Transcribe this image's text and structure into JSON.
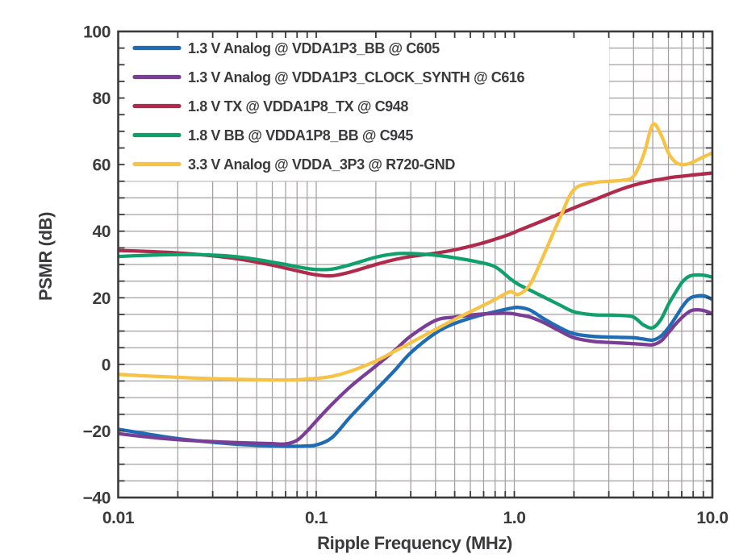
{
  "chart_data": {
    "type": "line",
    "title": "",
    "xlabel": "Ripple Frequency (MHz)",
    "ylabel": "PSMR (dB)",
    "x_scale": "log",
    "xlim": [
      0.01,
      10
    ],
    "ylim": [
      -40,
      100
    ],
    "grid": "on",
    "grid_minor_x_log": true,
    "grid_y_step_dB": 5,
    "legend_position": "top-left",
    "x_ticks": [
      {
        "value": 0.01,
        "label": "0.01"
      },
      {
        "value": 0.1,
        "label": "0.1"
      },
      {
        "value": 1.0,
        "label": "1.0"
      },
      {
        "value": 10.0,
        "label": "10.0"
      }
    ],
    "y_ticks": [
      {
        "value": 100,
        "label": "100"
      },
      {
        "value": 80,
        "label": "80"
      },
      {
        "value": 60,
        "label": "60"
      },
      {
        "value": 40,
        "label": "40"
      },
      {
        "value": 20,
        "label": "20"
      },
      {
        "value": 0,
        "label": "0"
      },
      {
        "value": -20,
        "label": "−20"
      },
      {
        "value": -40,
        "label": "−40"
      }
    ],
    "colors": {
      "text": "#3B3B3D",
      "border": "#3B3B3D",
      "grid": "#A5A0A2",
      "legend_background": "#FFFFFF",
      "plot_background": "#FFFFFF"
    },
    "line_width": 4.3,
    "x": [
      0.01,
      0.013,
      0.017,
      0.022,
      0.03,
      0.04,
      0.05,
      0.06,
      0.07,
      0.08,
      0.09,
      0.1,
      0.12,
      0.15,
      0.2,
      0.25,
      0.3,
      0.4,
      0.5,
      0.65,
      0.8,
      0.95,
      1.05,
      1.2,
      1.4,
      1.7,
      2.0,
      2.5,
      3.0,
      3.5,
      4.0,
      4.5,
      5.0,
      5.5,
      6.0,
      6.5,
      7.0,
      7.5,
      8.0,
      9.0,
      10.0
    ],
    "series": [
      {
        "name": "1.3 V Analog @ VDDA1P3_BB @ C605",
        "color": "#1E6CB3",
        "values": [
          -19.5,
          -20.6,
          -21.7,
          -22.6,
          -23.4,
          -24.0,
          -24.3,
          -24.5,
          -24.6,
          -24.6,
          -24.5,
          -24.2,
          -22.0,
          -15.5,
          -7.7,
          -1.7,
          3.5,
          9.4,
          12.3,
          14.5,
          15.8,
          16.8,
          17.1,
          16.3,
          13.8,
          11.0,
          9.2,
          8.4,
          8.2,
          8.1,
          8.0,
          7.6,
          7.3,
          8.5,
          11.0,
          14.0,
          17.0,
          19.3,
          20.3,
          20.6,
          19.5
        ]
      },
      {
        "name": "1.3 V Analog @ VDDA1P3_CLOCK_SYNTH @ C616",
        "color": "#7A3E96",
        "values": [
          -20.8,
          -21.6,
          -22.3,
          -22.8,
          -23.2,
          -23.5,
          -23.7,
          -23.8,
          -23.9,
          -22.8,
          -20.0,
          -17.0,
          -12.0,
          -6.5,
          -0.5,
          4.3,
          8.5,
          13.2,
          14.2,
          15.0,
          15.3,
          15.3,
          14.9,
          14.2,
          12.6,
          10.0,
          8.0,
          6.9,
          6.6,
          6.4,
          6.2,
          6.0,
          5.9,
          7.0,
          9.5,
          12.0,
          14.0,
          15.5,
          16.3,
          16.2,
          15.2
        ]
      },
      {
        "name": "1.8 V TX @ VDDA1P8_TX @ C948",
        "color": "#B02A4C",
        "values": [
          34.2,
          34.0,
          33.7,
          33.3,
          32.6,
          31.7,
          30.7,
          29.8,
          28.9,
          28.1,
          27.4,
          26.9,
          26.6,
          27.8,
          30.0,
          31.5,
          32.4,
          33.4,
          34.4,
          36.0,
          37.6,
          39.1,
          40.2,
          41.6,
          43.2,
          45.3,
          47.0,
          49.3,
          51.2,
          52.7,
          53.8,
          54.6,
          55.2,
          55.6,
          56.0,
          56.3,
          56.5,
          56.7,
          56.9,
          57.2,
          57.5
        ]
      },
      {
        "name": "1.8 V BB @ VDDA1P8_BB @ C945",
        "color": "#0FA06B",
        "values": [
          32.4,
          32.7,
          32.9,
          33.0,
          32.8,
          32.3,
          31.5,
          30.7,
          30.0,
          29.3,
          28.8,
          28.5,
          28.6,
          30.0,
          32.2,
          33.2,
          33.3,
          32.8,
          32.0,
          30.8,
          29.3,
          25.8,
          24.0,
          22.3,
          20.3,
          17.8,
          15.8,
          14.9,
          14.8,
          14.7,
          14.2,
          11.8,
          11.0,
          13.5,
          18.0,
          21.5,
          24.5,
          26.2,
          26.8,
          26.8,
          26.2
        ]
      },
      {
        "name": "3.3 V Analog @ VDDA_3P3 @ R720-GND",
        "color": "#F7C347",
        "values": [
          -3.0,
          -3.4,
          -3.7,
          -4.0,
          -4.3,
          -4.5,
          -4.6,
          -4.7,
          -4.7,
          -4.6,
          -4.4,
          -4.2,
          -3.6,
          -2.0,
          1.0,
          4.0,
          6.5,
          10.5,
          13.5,
          16.8,
          19.5,
          21.8,
          21.0,
          24.0,
          32.5,
          44.0,
          52.5,
          54.5,
          55.0,
          55.3,
          56.5,
          63.0,
          72.0,
          69.0,
          63.5,
          60.8,
          60.0,
          60.2,
          60.8,
          62.3,
          63.5
        ]
      }
    ]
  }
}
